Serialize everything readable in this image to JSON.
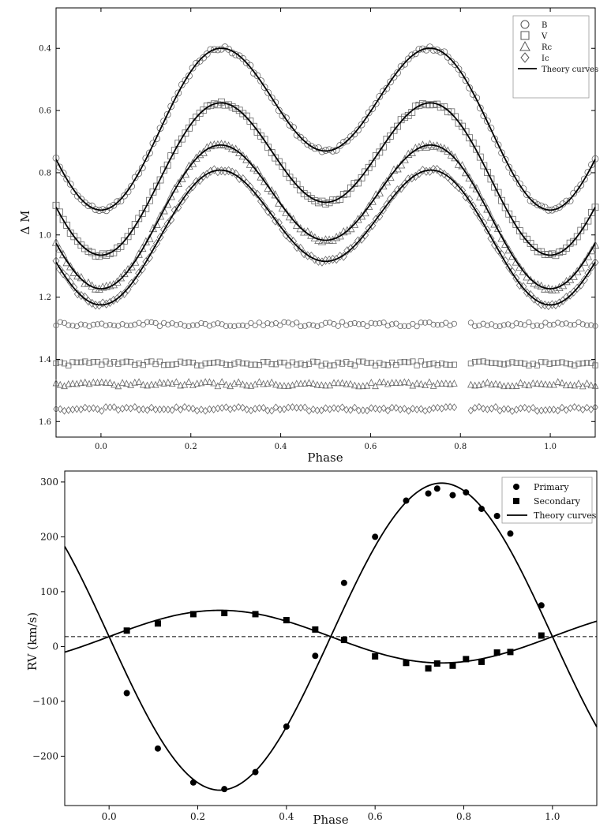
{
  "chart_data": [
    {
      "type": "scatter",
      "title": "",
      "xlabel": "Phase",
      "ylabel": "Δ M",
      "xlim": [
        -0.1,
        1.1
      ],
      "ylim": [
        1.65,
        0.27
      ],
      "y_inverted": true,
      "grid": false,
      "legend_position": "top-right",
      "x_ticks": [
        0.0,
        0.2,
        0.4,
        0.6,
        0.8,
        1.0
      ],
      "x_tick_labels": [
        "0.0",
        "0.2",
        "0.4",
        "0.6",
        "0.8",
        "1.0"
      ],
      "y_ticks": [
        0.4,
        0.6,
        0.8,
        1.0,
        1.2,
        1.4,
        1.6
      ],
      "y_tick_labels": [
        "0.4",
        "0.6",
        "0.8",
        "1.0",
        "1.2",
        "1.4",
        "1.6"
      ],
      "series": [
        {
          "name": "B",
          "marker": "circle",
          "model": {
            "mean": 0.615,
            "a1": 0.095,
            "a2": 0.21,
            "phase0": 0.0
          },
          "residual_level": 1.287,
          "residual_gap": [
            0.795,
            0.815
          ]
        },
        {
          "name": "V",
          "marker": "square",
          "model": {
            "mean": 0.78,
            "a1": 0.085,
            "a2": 0.2,
            "phase0": 0.0
          },
          "residual_level": 1.413,
          "residual_gap": [
            0.795,
            0.815
          ]
        },
        {
          "name": "Rc",
          "marker": "triangle",
          "model": {
            "mean": 0.905,
            "a1": 0.078,
            "a2": 0.19,
            "phase0": 0.0
          },
          "residual_level": 1.48,
          "residual_gap": [
            0.795,
            0.815
          ]
        },
        {
          "name": "Ic",
          "marker": "diamond",
          "model": {
            "mean": 0.975,
            "a1": 0.07,
            "a2": 0.18,
            "phase0": 0.0
          },
          "residual_level": 1.56,
          "residual_gap": [
            0.795,
            0.815
          ]
        }
      ],
      "theory_curve_label": "Theory curves",
      "legend": [
        "B",
        "V",
        "Rc",
        "Ic",
        "Theory curves"
      ]
    },
    {
      "type": "scatter",
      "title": "",
      "xlabel": "Phase",
      "ylabel": "RV (km/s)",
      "xlim": [
        -0.1,
        1.1
      ],
      "ylim": [
        -290,
        320
      ],
      "grid": false,
      "legend_position": "top-right",
      "x_ticks": [
        0.0,
        0.2,
        0.4,
        0.6,
        0.8,
        1.0
      ],
      "x_tick_labels": [
        "0.0",
        "0.2",
        "0.4",
        "0.6",
        "0.8",
        "1.0"
      ],
      "y_ticks": [
        -200,
        -100,
        0,
        100,
        200,
        300
      ],
      "y_tick_labels": [
        "−200",
        "−100",
        "0",
        "100",
        "200",
        "300"
      ],
      "systemic_velocity": 18,
      "theory_curves": {
        "primary": {
          "gamma": 18,
          "K": 280
        },
        "secondary": {
          "gamma": 18,
          "K": 48
        }
      },
      "series": [
        {
          "name": "Primary",
          "marker": "circle",
          "x": [
            0.04,
            0.11,
            0.19,
            0.26,
            0.33,
            0.4,
            0.465,
            0.53,
            0.6,
            0.67,
            0.72,
            0.74,
            0.775,
            0.805,
            0.84,
            0.875,
            0.905,
            0.975
          ],
          "y": [
            -85,
            -186,
            -248,
            -260,
            -229,
            -146,
            -17,
            116,
            200,
            266,
            279,
            288,
            276,
            281,
            251,
            238,
            206,
            75
          ]
        },
        {
          "name": "Secondary",
          "marker": "square",
          "x": [
            0.04,
            0.11,
            0.19,
            0.26,
            0.33,
            0.4,
            0.465,
            0.53,
            0.6,
            0.67,
            0.72,
            0.74,
            0.775,
            0.805,
            0.84,
            0.875,
            0.905,
            0.975
          ],
          "y": [
            29,
            42,
            59,
            61,
            59,
            48,
            31,
            12,
            -18,
            -30,
            -40,
            -31,
            -35,
            -23,
            -28,
            -11,
            -10,
            20
          ]
        }
      ],
      "legend": [
        "Primary",
        "Secondary",
        "Theory curves"
      ]
    }
  ]
}
